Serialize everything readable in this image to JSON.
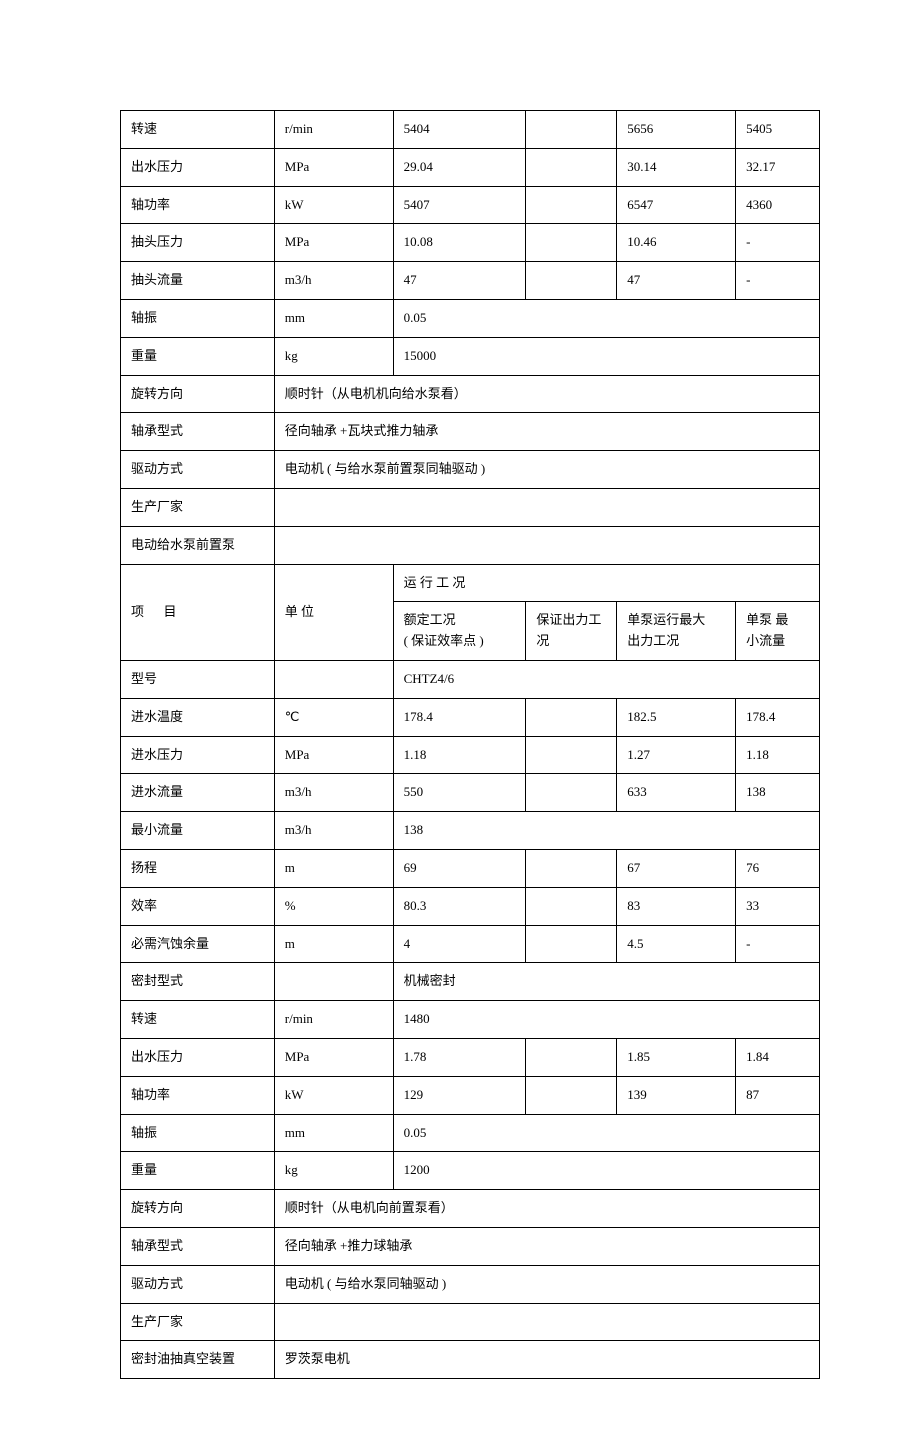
{
  "top": {
    "speed": {
      "label": "转速",
      "unit": "r/min",
      "v1": "5404",
      "v3": "5656",
      "v4": "5405"
    },
    "outPressure": {
      "label": "出水压力",
      "unit": "MPa",
      "v1": "29.04",
      "v3": "30.14",
      "v4": "32.17"
    },
    "shaftPower": {
      "label": "轴功率",
      "unit": "kW",
      "v1": "5407",
      "v3": "6547",
      "v4": "4360"
    },
    "tapPressure": {
      "label": "抽头压力",
      "unit": "MPa",
      "v1": "10.08",
      "v3": "10.46",
      "v4": "-"
    },
    "tapFlow": {
      "label": "抽头流量",
      "unit": "m3/h",
      "v1": "47",
      "v3": "47",
      "v4": "-"
    },
    "shaftVib": {
      "label": "轴振",
      "unit": "mm",
      "v1": "0.05"
    },
    "weight": {
      "label": "重量",
      "unit": "kg",
      "v1": "15000"
    },
    "rotDir": {
      "label": "旋转方向",
      "value": "顺时针（从电机机向给水泵看）"
    },
    "bearing": {
      "label": "轴承型式",
      "value": "径向轴承 +瓦块式推力轴承"
    },
    "drive": {
      "label": "驱动方式",
      "value": "电动机 ( 与给水泵前置泵同轴驱动      )"
    },
    "maker": {
      "label": "生产厂家",
      "value": ""
    },
    "prepump": {
      "label": "电动给水泵前置泵",
      "value": ""
    }
  },
  "header": {
    "item": "项",
    "item2": "目",
    "unit": "单 位",
    "opcond": "运  行       工  况",
    "c1a": "额定工况",
    "c1b": "( 保证效率点 )",
    "c2a": "保证出力工",
    "c2b": "况",
    "c3a": "单泵运行最大",
    "c3b": "出力工况",
    "c4a": "单泵 最",
    "c4b": "小流量"
  },
  "bottom": {
    "model": {
      "label": "型号",
      "unit": "",
      "v": "CHTZ4/6"
    },
    "inTemp": {
      "label": "进水温度",
      "unit": "℃",
      "v1": "178.4",
      "v3": "182.5",
      "v4": "178.4"
    },
    "inPress": {
      "label": "进水压力",
      "unit": "MPa",
      "v1": "1.18",
      "v3": "1.27",
      "v4": "1.18"
    },
    "inFlow": {
      "label": "进水流量",
      "unit": "m3/h",
      "v1": "550",
      "v3": "633",
      "v4": "138"
    },
    "minFlow": {
      "label": "最小流量",
      "unit": "m3/h",
      "v1": "138"
    },
    "head": {
      "label": "扬程",
      "unit": "m",
      "v1": "69",
      "v3": "67",
      "v4": "76"
    },
    "eff": {
      "label": "效率",
      "unit": "%",
      "v1": "80.3",
      "v3": "83",
      "v4": "33"
    },
    "npsh": {
      "label": "必需汽蚀余量",
      "unit": "m",
      "v1": "4",
      "v3": "4.5",
      "v4": "-"
    },
    "seal": {
      "label": "密封型式",
      "unit": "",
      "v": "机械密封"
    },
    "speed": {
      "label": "转速",
      "unit": "r/min",
      "v1": "1480"
    },
    "outPress": {
      "label": "出水压力",
      "unit": "MPa",
      "v1": "1.78",
      "v3": "1.85",
      "v4": "1.84"
    },
    "shaftPower": {
      "label": "轴功率",
      "unit": "kW",
      "v1": "129",
      "v3": "139",
      "v4": "87"
    },
    "shaftVib": {
      "label": "轴振",
      "unit": "mm",
      "v1": "0.05"
    },
    "weight": {
      "label": "重量",
      "unit": "kg",
      "v1": "1200"
    },
    "rotDir": {
      "label": "旋转方向",
      "value": "顺时针（从电机向前置泵看）"
    },
    "bearing": {
      "label": "轴承型式",
      "value": "径向轴承 +推力球轴承"
    },
    "drive": {
      "label": "驱动方式",
      "value": "电动机 ( 与给水泵同轴驱动   )"
    },
    "maker": {
      "label": "生产厂家",
      "value": ""
    },
    "vacuum": {
      "label": "密封油抽真空装置",
      "value": "罗茨泵电机"
    }
  }
}
